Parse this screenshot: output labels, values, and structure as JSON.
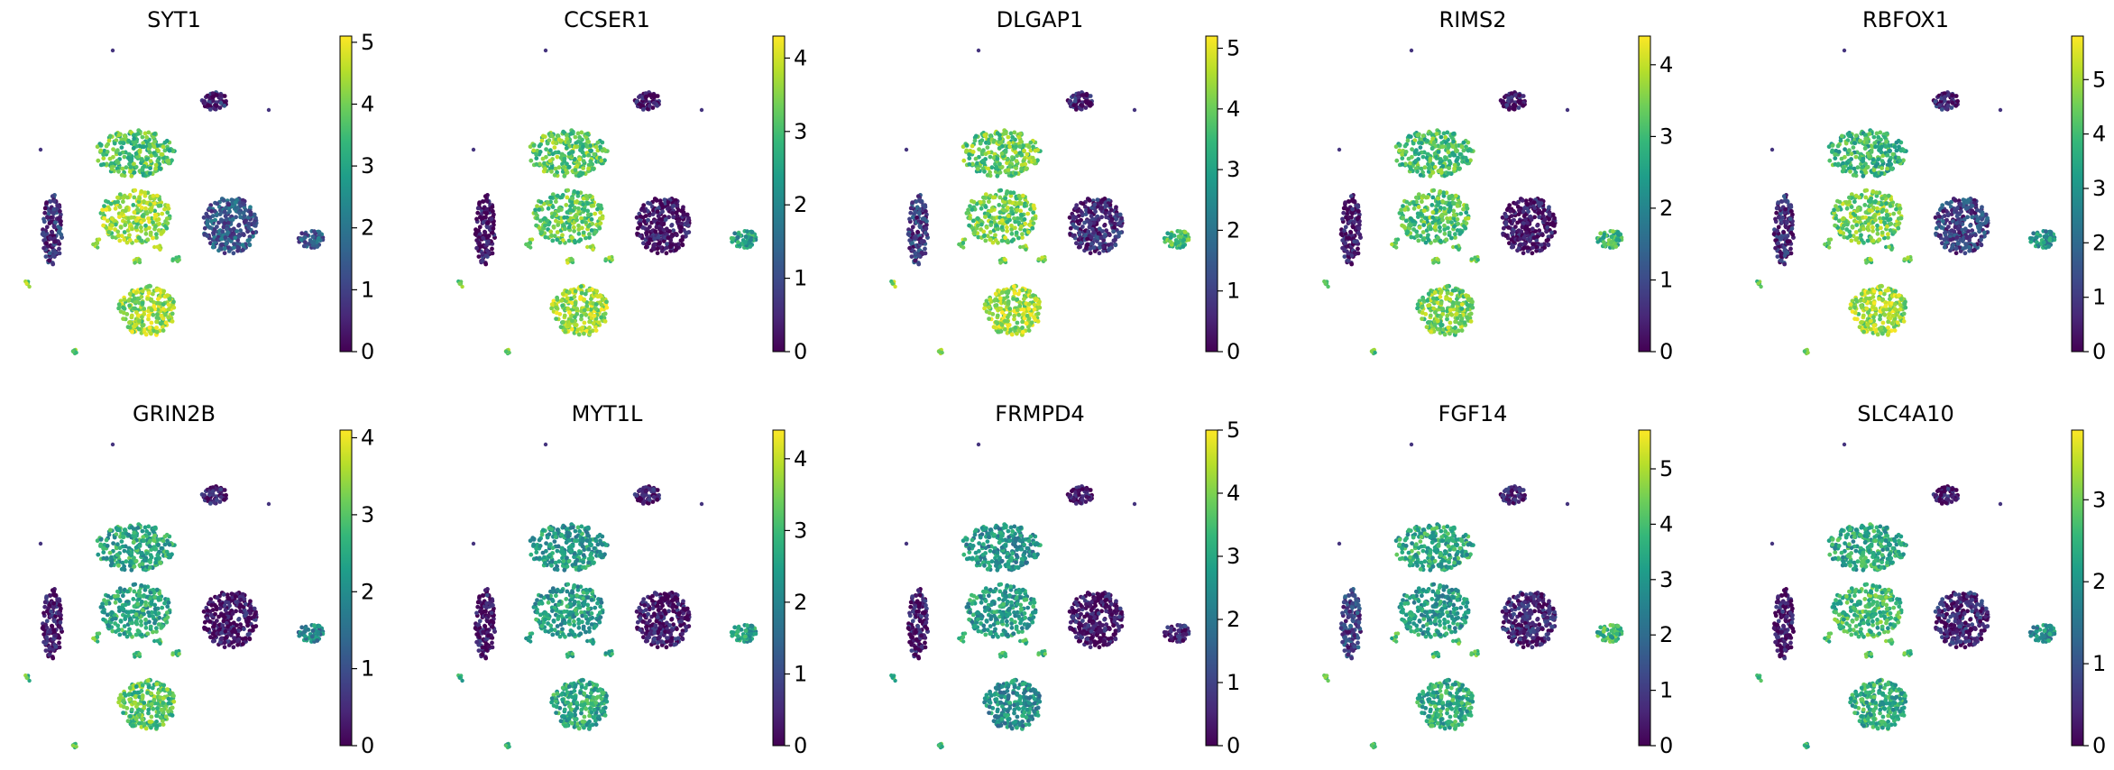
{
  "figure": {
    "description_type": "umap-feature-plot-grid",
    "rows": 2,
    "cols": 5,
    "colormap": [
      "#440154",
      "#482878",
      "#3e4989",
      "#31688e",
      "#26828e",
      "#1f9e89",
      "#35b779",
      "#6ece58",
      "#b5de2b",
      "#fde725"
    ],
    "background": "#ffffff"
  },
  "chart_data": [
    {
      "type": "scatter",
      "title": "SYT1",
      "colorbar": {
        "min": 0,
        "max": 5.1,
        "ticks": [
          0,
          1,
          2,
          3,
          4,
          5
        ]
      },
      "cluster_levels": {
        "top_left": 0.72,
        "mid_left": 0.82,
        "bottom_left": 0.85,
        "left_strip": 0.15,
        "big_right": 0.28,
        "top_small": 0.1,
        "far_right": 0.3,
        "small_bits": 0.8
      }
    },
    {
      "type": "scatter",
      "title": "CCSER1",
      "colorbar": {
        "min": 0,
        "max": 4.3,
        "ticks": [
          0,
          1,
          2,
          3,
          4
        ]
      },
      "cluster_levels": {
        "top_left": 0.75,
        "mid_left": 0.75,
        "bottom_left": 0.85,
        "left_strip": 0.05,
        "big_right": 0.05,
        "top_small": 0.05,
        "far_right": 0.55,
        "small_bits": 0.8
      }
    },
    {
      "type": "scatter",
      "title": "DLGAP1",
      "colorbar": {
        "min": 0,
        "max": 5.2,
        "ticks": [
          0,
          1,
          2,
          3,
          4,
          5
        ]
      },
      "cluster_levels": {
        "top_left": 0.75,
        "mid_left": 0.78,
        "bottom_left": 0.88,
        "left_strip": 0.18,
        "big_right": 0.12,
        "top_small": 0.08,
        "far_right": 0.7,
        "small_bits": 0.8
      }
    },
    {
      "type": "scatter",
      "title": "RIMS2",
      "colorbar": {
        "min": 0,
        "max": 4.4,
        "ticks": [
          0,
          1,
          2,
          3,
          4
        ]
      },
      "cluster_levels": {
        "top_left": 0.7,
        "mid_left": 0.72,
        "bottom_left": 0.78,
        "left_strip": 0.05,
        "big_right": 0.05,
        "top_small": 0.05,
        "far_right": 0.65,
        "small_bits": 0.75
      }
    },
    {
      "type": "scatter",
      "title": "RBFOX1",
      "colorbar": {
        "min": 0,
        "max": 5.8,
        "ticks": [
          0,
          1,
          2,
          3,
          4,
          5
        ]
      },
      "cluster_levels": {
        "top_left": 0.65,
        "mid_left": 0.78,
        "bottom_left": 0.85,
        "left_strip": 0.12,
        "big_right": 0.2,
        "top_small": 0.1,
        "far_right": 0.5,
        "small_bits": 0.75
      }
    },
    {
      "type": "scatter",
      "title": "GRIN2B",
      "colorbar": {
        "min": 0,
        "max": 4.1,
        "ticks": [
          0,
          1,
          2,
          3,
          4
        ]
      },
      "cluster_levels": {
        "top_left": 0.6,
        "mid_left": 0.6,
        "bottom_left": 0.72,
        "left_strip": 0.05,
        "big_right": 0.04,
        "top_small": 0.05,
        "far_right": 0.45,
        "small_bits": 0.7
      }
    },
    {
      "type": "scatter",
      "title": "MYT1L",
      "colorbar": {
        "min": 0,
        "max": 4.4,
        "ticks": [
          0,
          1,
          2,
          3,
          4
        ]
      },
      "cluster_levels": {
        "top_left": 0.55,
        "mid_left": 0.55,
        "bottom_left": 0.6,
        "left_strip": 0.05,
        "big_right": 0.05,
        "top_small": 0.05,
        "far_right": 0.55,
        "small_bits": 0.6
      }
    },
    {
      "type": "scatter",
      "title": "FRMPD4",
      "colorbar": {
        "min": 0,
        "max": 5.0,
        "ticks": [
          0,
          1,
          2,
          3,
          4,
          5
        ]
      },
      "cluster_levels": {
        "top_left": 0.5,
        "mid_left": 0.55,
        "bottom_left": 0.5,
        "left_strip": 0.05,
        "big_right": 0.04,
        "top_small": 0.05,
        "far_right": 0.08,
        "small_bits": 0.65
      }
    },
    {
      "type": "scatter",
      "title": "FGF14",
      "colorbar": {
        "min": 0,
        "max": 5.7,
        "ticks": [
          0,
          1,
          2,
          3,
          4,
          5
        ]
      },
      "cluster_levels": {
        "top_left": 0.6,
        "mid_left": 0.55,
        "bottom_left": 0.62,
        "left_strip": 0.2,
        "big_right": 0.1,
        "top_small": 0.08,
        "far_right": 0.65,
        "small_bits": 0.7
      }
    },
    {
      "type": "scatter",
      "title": "SLC4A10",
      "colorbar": {
        "min": 0,
        "max": 3.85,
        "ticks": [
          0,
          1,
          2,
          3
        ]
      },
      "cluster_levels": {
        "top_left": 0.6,
        "mid_left": 0.68,
        "bottom_left": 0.62,
        "left_strip": 0.05,
        "big_right": 0.1,
        "top_small": 0.05,
        "far_right": 0.5,
        "small_bits": 0.7
      }
    }
  ]
}
